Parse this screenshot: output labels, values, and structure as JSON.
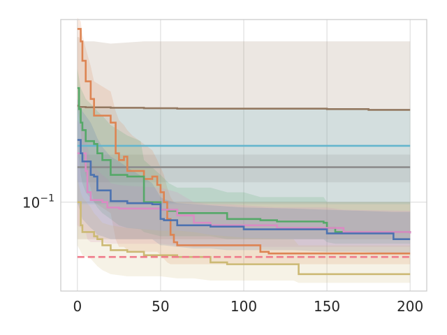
{
  "chart_data": {
    "type": "line",
    "title": "",
    "xlabel": "",
    "ylabel": "",
    "xlim": [
      -10,
      210
    ],
    "ylim": [
      0.0425,
      0.58
    ],
    "yscale": "log",
    "grid": true,
    "x_ticks": [
      {
        "value": 0,
        "label": "0"
      },
      {
        "value": 50,
        "label": "50"
      },
      {
        "value": 100,
        "label": "100"
      },
      {
        "value": 150,
        "label": "150"
      },
      {
        "value": 200,
        "label": "200"
      }
    ],
    "y_ticks": [
      {
        "value": 0.1,
        "base": "10",
        "exp": "−1"
      }
    ],
    "colors": {
      "grid": "#d9d9d9",
      "frame": "#cccccc",
      "background": "#ffffff"
    },
    "series": [
      {
        "color": "#937860",
        "style": "solid",
        "x": [
          0,
          1,
          2,
          5,
          10,
          20,
          40,
          60,
          90,
          100,
          150,
          170,
          175,
          200
        ],
        "y": [
          0.253,
          0.25,
          0.25,
          0.249,
          0.249,
          0.248,
          0.247,
          0.246,
          0.246,
          0.246,
          0.245,
          0.245,
          0.243,
          0.243
        ],
        "band_lower": [
          0.07,
          0.07,
          0.07,
          0.07,
          0.07,
          0.07,
          0.07,
          0.07,
          0.07,
          0.07,
          0.07,
          0.07,
          0.07,
          0.07
        ],
        "band_upper": [
          0.49,
          0.49,
          0.47,
          0.47,
          0.47,
          0.46,
          0.47,
          0.47,
          0.47,
          0.47,
          0.47,
          0.47,
          0.47,
          0.47
        ]
      },
      {
        "color": "#64b5cd",
        "style": "solid",
        "x": [
          0,
          200
        ],
        "y": [
          0.172,
          0.172
        ],
        "band_lower": [
          0.098,
          0.098
        ],
        "band_upper": [
          0.245,
          0.245
        ]
      },
      {
        "color": "#8c8c8c",
        "style": "solid",
        "x": [
          0,
          200
        ],
        "y": [
          0.14,
          0.14
        ],
        "band_lower": [
          0.121,
          0.121
        ],
        "band_upper": [
          0.158,
          0.158
        ]
      },
      {
        "color": "#dd8452",
        "style": "solid",
        "x": [
          0,
          2,
          3,
          5,
          8,
          10,
          20,
          23,
          25,
          28,
          30,
          33,
          40,
          45,
          48,
          50,
          52,
          54,
          56,
          58,
          60,
          100,
          110,
          115,
          200
        ],
        "y": [
          0.53,
          0.47,
          0.39,
          0.32,
          0.27,
          0.23,
          0.215,
          0.16,
          0.15,
          0.155,
          0.135,
          0.135,
          0.125,
          0.128,
          0.118,
          0.11,
          0.1,
          0.085,
          0.073,
          0.068,
          0.066,
          0.066,
          0.062,
          0.061,
          0.061
        ],
        "band_lower": [
          0.25,
          0.2,
          0.16,
          0.13,
          0.115,
          0.1,
          0.09,
          0.07,
          0.065,
          0.065,
          0.063,
          0.062,
          0.062,
          0.062,
          0.062,
          0.06,
          0.058,
          0.056,
          0.055,
          0.055,
          0.055,
          0.055,
          0.055,
          0.055,
          0.055
        ],
        "band_upper": [
          0.59,
          0.57,
          0.5,
          0.44,
          0.37,
          0.32,
          0.29,
          0.24,
          0.22,
          0.21,
          0.2,
          0.19,
          0.175,
          0.165,
          0.15,
          0.14,
          0.13,
          0.115,
          0.105,
          0.1,
          0.1,
          0.1,
          0.1,
          0.1,
          0.1
        ]
      },
      {
        "color": "#55a868",
        "style": "solid",
        "x": [
          0,
          1,
          2,
          3,
          5,
          10,
          12,
          15,
          20,
          25,
          30,
          38,
          40,
          50,
          55,
          60,
          80,
          90,
          100,
          110,
          120,
          145,
          148,
          150,
          155,
          200
        ],
        "y": [
          0.3,
          0.245,
          0.215,
          0.2,
          0.18,
          0.175,
          0.16,
          0.15,
          0.13,
          0.13,
          0.128,
          0.128,
          0.1,
          0.093,
          0.092,
          0.09,
          0.09,
          0.085,
          0.085,
          0.084,
          0.083,
          0.083,
          0.082,
          0.078,
          0.075,
          0.074
        ],
        "band_lower": [
          0.17,
          0.15,
          0.13,
          0.12,
          0.11,
          0.1,
          0.095,
          0.09,
          0.085,
          0.08,
          0.078,
          0.077,
          0.075,
          0.072,
          0.072,
          0.072,
          0.072,
          0.07,
          0.07,
          0.07,
          0.07,
          0.07,
          0.07,
          0.068,
          0.067,
          0.067
        ],
        "band_upper": [
          0.36,
          0.33,
          0.3,
          0.29,
          0.27,
          0.25,
          0.24,
          0.23,
          0.21,
          0.2,
          0.19,
          0.18,
          0.15,
          0.13,
          0.12,
          0.115,
          0.115,
          0.11,
          0.11,
          0.105,
          0.105,
          0.105,
          0.105,
          0.1,
          0.1,
          0.1
        ]
      },
      {
        "color": "#da8bc3",
        "style": "solid",
        "x": [
          0,
          5,
          6,
          8,
          10,
          15,
          18,
          20,
          25,
          30,
          50,
          60,
          70,
          80,
          90,
          100,
          120,
          150,
          160,
          200
        ],
        "y": [
          0.16,
          0.135,
          0.11,
          0.102,
          0.102,
          0.1,
          0.095,
          0.095,
          0.094,
          0.094,
          0.093,
          0.088,
          0.082,
          0.08,
          0.08,
          0.08,
          0.078,
          0.078,
          0.075,
          0.074
        ],
        "band_lower": [
          0.08,
          0.075,
          0.07,
          0.068,
          0.068,
          0.068,
          0.067,
          0.067,
          0.067,
          0.067,
          0.067,
          0.066,
          0.065,
          0.065,
          0.065,
          0.065,
          0.065,
          0.065,
          0.065,
          0.065
        ],
        "band_upper": [
          0.22,
          0.2,
          0.17,
          0.15,
          0.14,
          0.13,
          0.125,
          0.12,
          0.118,
          0.117,
          0.115,
          0.11,
          0.1,
          0.098,
          0.098,
          0.097,
          0.095,
          0.095,
          0.093,
          0.092
        ]
      },
      {
        "color": "#4c72b0",
        "style": "solid",
        "x": [
          0,
          2,
          3,
          5,
          8,
          10,
          12,
          15,
          20,
          25,
          30,
          45,
          50,
          52,
          60,
          70,
          80,
          90,
          100,
          130,
          150,
          170,
          190,
          200
        ],
        "y": [
          0.182,
          0.16,
          0.148,
          0.148,
          0.13,
          0.128,
          0.112,
          0.112,
          0.101,
          0.101,
          0.099,
          0.098,
          0.085,
          0.084,
          0.08,
          0.08,
          0.079,
          0.079,
          0.077,
          0.077,
          0.074,
          0.074,
          0.07,
          0.07
        ],
        "band_lower": [
          0.1,
          0.09,
          0.085,
          0.082,
          0.078,
          0.076,
          0.073,
          0.072,
          0.07,
          0.07,
          0.07,
          0.07,
          0.066,
          0.066,
          0.065,
          0.064,
          0.064,
          0.063,
          0.063,
          0.063,
          0.062,
          0.062,
          0.061,
          0.061
        ],
        "band_upper": [
          0.27,
          0.25,
          0.24,
          0.23,
          0.215,
          0.2,
          0.185,
          0.17,
          0.155,
          0.148,
          0.14,
          0.12,
          0.105,
          0.103,
          0.099,
          0.098,
          0.097,
          0.096,
          0.095,
          0.094,
          0.093,
          0.092,
          0.091,
          0.091
        ]
      },
      {
        "color": "#ccb974",
        "style": "solid",
        "x": [
          0,
          2,
          3,
          8,
          10,
          12,
          15,
          20,
          30,
          40,
          50,
          60,
          70,
          80,
          90,
          100,
          130,
          133,
          150,
          200
        ],
        "y": [
          0.1,
          0.08,
          0.075,
          0.075,
          0.072,
          0.07,
          0.066,
          0.063,
          0.062,
          0.06,
          0.06,
          0.059,
          0.059,
          0.056,
          0.055,
          0.055,
          0.055,
          0.05,
          0.05,
          0.05
        ],
        "band_lower": [
          0.066,
          0.062,
          0.06,
          0.058,
          0.056,
          0.054,
          0.052,
          0.05,
          0.049,
          0.049,
          0.049,
          0.048,
          0.048,
          0.047,
          0.047,
          0.047,
          0.047,
          0.046,
          0.046,
          0.046
        ],
        "band_upper": [
          0.125,
          0.11,
          0.105,
          0.095,
          0.09,
          0.087,
          0.082,
          0.08,
          0.078,
          0.077,
          0.076,
          0.076,
          0.075,
          0.073,
          0.072,
          0.071,
          0.07,
          0.066,
          0.066,
          0.066
        ]
      },
      {
        "color": "#f07a8a",
        "style": "dashed",
        "x": [
          0,
          200
        ],
        "y": [
          0.059,
          0.059
        ]
      }
    ]
  }
}
